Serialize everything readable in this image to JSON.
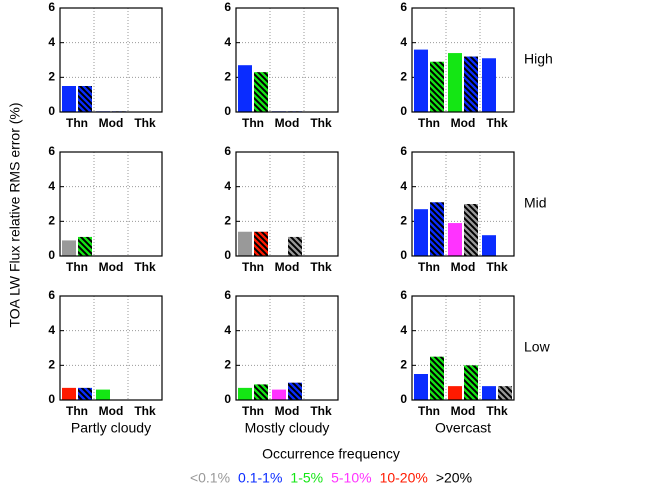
{
  "y_label": "TOA LW Flux relative RMS error (%)",
  "row_labels": [
    "High",
    "Mid",
    "Low"
  ],
  "col_labels": [
    "Partly cloudy",
    "Mostly cloudy",
    "Overcast"
  ],
  "legend": {
    "title": "Occurrence frequency",
    "items": [
      {
        "label": "<0.1%",
        "color": "#999999"
      },
      {
        "label": "0.1-1%",
        "color": "#0a2cff"
      },
      {
        "label": "1-5%",
        "color": "#14e614"
      },
      {
        "label": "5-10%",
        "color": "#ff33ff"
      },
      {
        "label": "10-20%",
        "color": "#ff1a00"
      },
      {
        "label": ">20%",
        "color": "#000000"
      }
    ]
  },
  "chart_data": [
    {
      "type": "bar",
      "categories": [
        "Thn",
        "Mod",
        "Thk"
      ],
      "ylim": [
        0,
        6
      ],
      "yticks": [
        0,
        2,
        4,
        6
      ],
      "grid": true,
      "series": [
        {
          "hatch": false,
          "values": [
            1.5,
            0.04,
            null
          ],
          "colors": [
            "#0a2cff",
            "#0a2cff",
            null
          ]
        },
        {
          "hatch": true,
          "values": [
            1.5,
            0.04,
            null
          ],
          "colors": [
            "#0a2cff",
            "#0a2cff",
            null
          ]
        }
      ]
    },
    {
      "type": "bar",
      "categories": [
        "Thn",
        "Mod",
        "Thk"
      ],
      "ylim": [
        0,
        6
      ],
      "yticks": [
        0,
        2,
        4,
        6
      ],
      "grid": true,
      "series": [
        {
          "hatch": false,
          "values": [
            2.7,
            0.04,
            null
          ],
          "colors": [
            "#0a2cff",
            "#0a2cff",
            null
          ]
        },
        {
          "hatch": true,
          "values": [
            2.3,
            0.04,
            null
          ],
          "colors": [
            "#14e614",
            "#0a2cff",
            null
          ]
        }
      ]
    },
    {
      "type": "bar",
      "categories": [
        "Thn",
        "Mod",
        "Thk"
      ],
      "ylim": [
        0,
        6
      ],
      "yticks": [
        0,
        2,
        4,
        6
      ],
      "grid": true,
      "series": [
        {
          "hatch": false,
          "values": [
            3.6,
            3.4,
            3.1
          ],
          "colors": [
            "#0a2cff",
            "#14e614",
            "#0a2cff"
          ]
        },
        {
          "hatch": true,
          "values": [
            2.9,
            3.2,
            null
          ],
          "colors": [
            "#14e614",
            "#0a2cff",
            null
          ]
        }
      ]
    },
    {
      "type": "bar",
      "categories": [
        "Thn",
        "Mod",
        "Thk"
      ],
      "ylim": [
        0,
        6
      ],
      "yticks": [
        0,
        2,
        4,
        6
      ],
      "grid": true,
      "series": [
        {
          "hatch": false,
          "values": [
            0.9,
            0.03,
            null
          ],
          "colors": [
            "#999999",
            "#0a2cff",
            null
          ]
        },
        {
          "hatch": true,
          "values": [
            1.1,
            0.03,
            null
          ],
          "colors": [
            "#14e614",
            "#0a2cff",
            null
          ]
        }
      ]
    },
    {
      "type": "bar",
      "categories": [
        "Thn",
        "Mod",
        "Thk"
      ],
      "ylim": [
        0,
        6
      ],
      "yticks": [
        0,
        2,
        4,
        6
      ],
      "grid": true,
      "series": [
        {
          "hatch": false,
          "values": [
            1.4,
            null,
            null
          ],
          "colors": [
            "#999999",
            null,
            null
          ]
        },
        {
          "hatch": true,
          "values": [
            1.4,
            1.1,
            null
          ],
          "colors": [
            "#ff1a00",
            "#999999",
            null
          ]
        }
      ]
    },
    {
      "type": "bar",
      "categories": [
        "Thn",
        "Mod",
        "Thk"
      ],
      "ylim": [
        0,
        6
      ],
      "yticks": [
        0,
        2,
        4,
        6
      ],
      "grid": true,
      "series": [
        {
          "hatch": false,
          "values": [
            2.7,
            1.9,
            1.2
          ],
          "colors": [
            "#0a2cff",
            "#ff33ff",
            "#0a2cff"
          ]
        },
        {
          "hatch": true,
          "values": [
            3.1,
            3.0,
            null
          ],
          "colors": [
            "#0a2cff",
            "#999999",
            null
          ]
        }
      ]
    },
    {
      "type": "bar",
      "categories": [
        "Thn",
        "Mod",
        "Thk"
      ],
      "ylim": [
        0,
        6
      ],
      "yticks": [
        0,
        2,
        4,
        6
      ],
      "grid": true,
      "series": [
        {
          "hatch": false,
          "values": [
            0.7,
            0.6,
            null
          ],
          "colors": [
            "#ff1a00",
            "#14e614",
            null
          ]
        },
        {
          "hatch": true,
          "values": [
            0.7,
            null,
            null
          ],
          "colors": [
            "#0a2cff",
            null,
            null
          ]
        }
      ]
    },
    {
      "type": "bar",
      "categories": [
        "Thn",
        "Mod",
        "Thk"
      ],
      "ylim": [
        0,
        6
      ],
      "yticks": [
        0,
        2,
        4,
        6
      ],
      "grid": true,
      "series": [
        {
          "hatch": false,
          "values": [
            0.7,
            0.6,
            null
          ],
          "colors": [
            "#14e614",
            "#ff33ff",
            null
          ]
        },
        {
          "hatch": true,
          "values": [
            0.9,
            1.0,
            null
          ],
          "colors": [
            "#14e614",
            "#0a2cff",
            null
          ]
        }
      ]
    },
    {
      "type": "bar",
      "categories": [
        "Thn",
        "Mod",
        "Thk"
      ],
      "ylim": [
        0,
        6
      ],
      "yticks": [
        0,
        2,
        4,
        6
      ],
      "grid": true,
      "series": [
        {
          "hatch": false,
          "values": [
            1.5,
            0.8,
            0.8
          ],
          "colors": [
            "#0a2cff",
            "#ff1a00",
            "#0a2cff"
          ]
        },
        {
          "hatch": true,
          "values": [
            2.5,
            2.0,
            0.8
          ],
          "colors": [
            "#14e614",
            "#14e614",
            "#999999"
          ]
        }
      ]
    }
  ]
}
